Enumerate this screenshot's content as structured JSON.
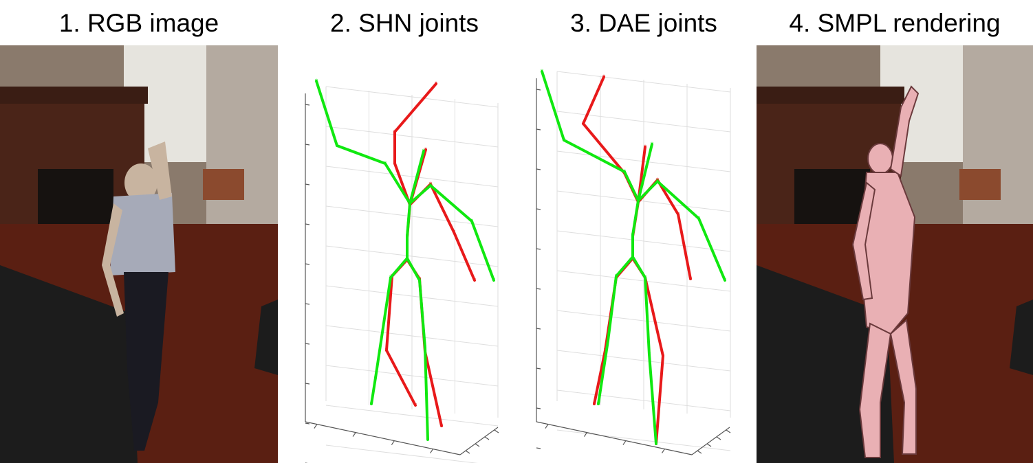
{
  "panels": [
    {
      "title": "1. RGB image"
    },
    {
      "title": "2. SHN joints"
    },
    {
      "title": "3. DAE joints"
    },
    {
      "title": "4. SMPL rendering"
    }
  ],
  "colors": {
    "pred": "#e8191a",
    "gt": "#10e810",
    "grid": "#dedede",
    "axis": "#555555",
    "mesh": "#e9b0b4",
    "floor": "#5a1f12",
    "sofa": "#1c1c1c",
    "wall": "#a89a8c",
    "window": "#e6e4de"
  }
}
